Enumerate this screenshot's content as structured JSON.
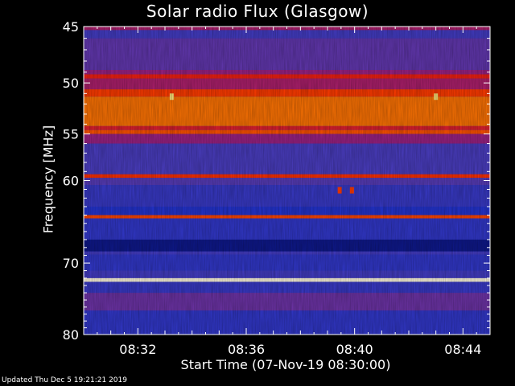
{
  "chart_data": {
    "type": "heatmap",
    "title": "Solar radio Flux (Glasgow)",
    "xlabel": "Start Time (07-Nov-19 08:30:00)",
    "ylabel": "Frequency [MHz]",
    "x_start_minutes": 0,
    "x_end_minutes": 15,
    "x_ticks": [
      {
        "minute": 2,
        "label": "08:32"
      },
      {
        "minute": 6,
        "label": "08:36"
      },
      {
        "minute": 10,
        "label": "08:40"
      },
      {
        "minute": 14,
        "label": "08:44"
      }
    ],
    "y_scale": "log",
    "ylim": [
      45,
      80
    ],
    "y_ticks": [
      45,
      50,
      55,
      60,
      70,
      80
    ],
    "colormap": [
      "#00004a",
      "#1e32d2",
      "#5040c0",
      "#a02080",
      "#ff2000",
      "#ff7000",
      "#ffe060",
      "#ffffff"
    ],
    "bands": [
      {
        "freq": [
          45.0,
          45.3
        ],
        "level": 0.45
      },
      {
        "freq": [
          45.3,
          46.0
        ],
        "level": 0.25
      },
      {
        "freq": [
          46.0,
          48.8
        ],
        "level": 0.32
      },
      {
        "freq": [
          48.8,
          49.2
        ],
        "level": 0.42
      },
      {
        "freq": [
          49.2,
          49.6
        ],
        "level": 0.55
      },
      {
        "freq": [
          49.6,
          50.6
        ],
        "level": 0.45
      },
      {
        "freq": [
          50.6,
          51.3
        ],
        "level": 0.62
      },
      {
        "freq": [
          51.3,
          54.2
        ],
        "level": 0.72
      },
      {
        "freq": [
          54.2,
          54.6
        ],
        "level": 0.52
      },
      {
        "freq": [
          54.6,
          55.0
        ],
        "level": 0.66
      },
      {
        "freq": [
          55.0,
          56.0
        ],
        "level": 0.42
      },
      {
        "freq": [
          56.0,
          59.3
        ],
        "level": 0.27
      },
      {
        "freq": [
          59.3,
          59.7
        ],
        "level": 0.6
      },
      {
        "freq": [
          59.7,
          60.5
        ],
        "level": 0.3
      },
      {
        "freq": [
          60.5,
          63.0
        ],
        "level": 0.22
      },
      {
        "freq": [
          63.0,
          64.0
        ],
        "level": 0.16
      },
      {
        "freq": [
          64.0,
          64.4
        ],
        "level": 0.64
      },
      {
        "freq": [
          64.4,
          67.0
        ],
        "level": 0.2
      },
      {
        "freq": [
          67.0,
          68.5
        ],
        "level": 0.07
      },
      {
        "freq": [
          68.5,
          68.9
        ],
        "level": 0.25
      },
      {
        "freq": [
          68.9,
          71.0
        ],
        "level": 0.2
      },
      {
        "freq": [
          71.0,
          72.0
        ],
        "level": 0.25
      },
      {
        "freq": [
          72.0,
          72.5
        ],
        "level": 0.97
      },
      {
        "freq": [
          72.5,
          74.0
        ],
        "level": 0.22
      },
      {
        "freq": [
          74.0,
          76.5
        ],
        "level": 0.34
      },
      {
        "freq": [
          76.5,
          80.0
        ],
        "level": 0.2
      }
    ],
    "bursts": [
      {
        "minute": 3.25,
        "freq": 51.3,
        "level": 0.88
      },
      {
        "minute": 13.0,
        "freq": 51.3,
        "level": 0.88
      },
      {
        "minute": 9.45,
        "freq": 61.1,
        "level": 0.62
      },
      {
        "minute": 9.9,
        "freq": 61.1,
        "level": 0.62
      }
    ],
    "grid": false
  },
  "footer": "Updated Thu Dec  5 19:21:21 2019",
  "colors": {
    "axis": "#ffffff",
    "background": "#000000"
  }
}
